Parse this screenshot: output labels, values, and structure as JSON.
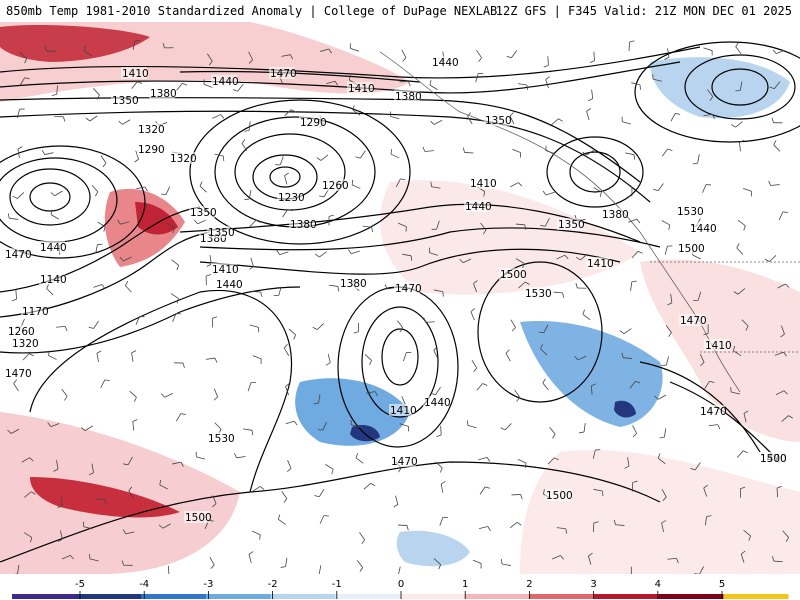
{
  "header": {
    "title_left": "850mb Temp 1981-2010 Standardized Anomaly | College of DuPage NEXLAB",
    "title_right": "12Z GFS | F345 Valid: 21Z MON DEC 01 2025"
  },
  "colorbar": {
    "ticks": [
      "-5",
      "-4",
      "-3",
      "-2",
      "-1",
      "0",
      "1",
      "2",
      "3",
      "4",
      "5"
    ],
    "colors": [
      "#3d2a8c",
      "#23367e",
      "#2f78c9",
      "#6faae0",
      "#b8d4ee",
      "#e7eff8",
      "#fbe9ea",
      "#f3b7b9",
      "#e0676c",
      "#b8172a",
      "#7f0017",
      "#f3c41b"
    ]
  },
  "contour_labels": [
    {
      "name": "label-1410-nw",
      "text": "1410"
    },
    {
      "name": "label-1440-n",
      "text": "1440"
    },
    {
      "name": "label-1470-n",
      "text": "1470"
    },
    {
      "name": "label-1410-n2",
      "text": "1410"
    },
    {
      "name": "label-1440-ne",
      "text": "1440"
    },
    {
      "name": "label-1380-nw",
      "text": "1380"
    },
    {
      "name": "label-1380-n",
      "text": "1380"
    },
    {
      "name": "label-1350-nw",
      "text": "1350"
    },
    {
      "name": "label-1350-ak",
      "text": "1350"
    },
    {
      "name": "label-1320-nw",
      "text": "1320"
    },
    {
      "name": "label-1290-nw",
      "text": "1290"
    },
    {
      "name": "label-1290-low",
      "text": "1290"
    },
    {
      "name": "label-1320-w",
      "text": "1320"
    },
    {
      "name": "label-1230-low",
      "text": "1230"
    },
    {
      "name": "label-1260-low",
      "text": "1260"
    },
    {
      "name": "label-1380-ak",
      "text": "1380"
    },
    {
      "name": "label-1410-ak",
      "text": "1410"
    },
    {
      "name": "label-1440-ak",
      "text": "1440"
    },
    {
      "name": "label-1350-bc",
      "text": "1350"
    },
    {
      "name": "label-1380-bc",
      "text": "1380"
    },
    {
      "name": "label-1410-bc",
      "text": "1410"
    },
    {
      "name": "label-1440-bc",
      "text": "1440"
    },
    {
      "name": "label-1470-bc",
      "text": "1470"
    },
    {
      "name": "label-1140-w",
      "text": "1140"
    },
    {
      "name": "label-1170-w",
      "text": "1170"
    },
    {
      "name": "label-1260-w",
      "text": "1260"
    },
    {
      "name": "label-1320-sw",
      "text": "1320"
    },
    {
      "name": "label-1350-sw",
      "text": "1350"
    },
    {
      "name": "label-1380-sw",
      "text": "1380"
    },
    {
      "name": "label-1350-c",
      "text": "1350"
    },
    {
      "name": "label-1410-c",
      "text": "1410"
    },
    {
      "name": "label-1440-c",
      "text": "1440"
    },
    {
      "name": "label-1380-c",
      "text": "1380"
    },
    {
      "name": "label-1470-c",
      "text": "1470"
    },
    {
      "name": "label-1500-c",
      "text": "1500"
    },
    {
      "name": "label-1530-c",
      "text": "1530"
    },
    {
      "name": "label-1470-w",
      "text": "1470"
    },
    {
      "name": "label-1470-mid",
      "text": "1470"
    },
    {
      "name": "label-1500-mid",
      "text": "1500"
    },
    {
      "name": "label-1530-mid",
      "text": "1530"
    },
    {
      "name": "label-1410-cut",
      "text": "1410"
    },
    {
      "name": "label-1440-cut",
      "text": "1440"
    },
    {
      "name": "label-1470-cut",
      "text": "1470"
    },
    {
      "name": "label-1530-sw",
      "text": "1530"
    },
    {
      "name": "label-1500-s",
      "text": "1500"
    },
    {
      "name": "label-1500-se",
      "text": "1500"
    },
    {
      "name": "label-1470-e",
      "text": "1470"
    },
    {
      "name": "label-1470-coast",
      "text": "1470"
    },
    {
      "name": "label-1410-coast",
      "text": "1410"
    },
    {
      "name": "label-1440-coast",
      "text": "1440"
    },
    {
      "name": "label-1500-far-se",
      "text": "1500"
    }
  ]
}
